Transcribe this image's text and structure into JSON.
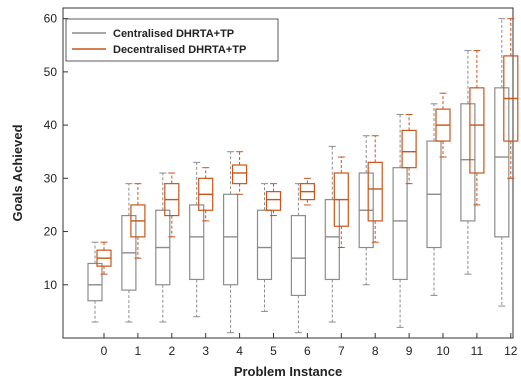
{
  "chart_data": {
    "type": "boxplot",
    "xlabel": "Problem Instance",
    "ylabel": "Goals Achieved",
    "categories": [
      "0",
      "1",
      "2",
      "3",
      "4",
      "5",
      "6",
      "7",
      "8",
      "9",
      "10",
      "11",
      "12"
    ],
    "ylim": [
      0,
      62
    ],
    "yticks": [
      10,
      20,
      30,
      40,
      50,
      60
    ],
    "grid": false,
    "legend_position": "top-left",
    "series": [
      {
        "name": "Centralised DHRTA+TP",
        "color": "#8c8c8c",
        "median_color": "#8c8c8c",
        "boxes": [
          {
            "min": 3,
            "q1": 7,
            "median": 10,
            "q3": 14,
            "max": 18
          },
          {
            "min": 3,
            "q1": 9,
            "median": 16,
            "q3": 23,
            "max": 29
          },
          {
            "min": 3,
            "q1": 10,
            "median": 17,
            "q3": 24,
            "max": 31
          },
          {
            "min": 4,
            "q1": 11,
            "median": 19,
            "q3": 25,
            "max": 33
          },
          {
            "min": 1,
            "q1": 10,
            "median": 19,
            "q3": 27,
            "max": 35
          },
          {
            "min": 5,
            "q1": 11,
            "median": 17,
            "q3": 24,
            "max": 29
          },
          {
            "min": 1,
            "q1": 8,
            "median": 15,
            "q3": 23,
            "max": 29
          },
          {
            "min": 3,
            "q1": 11,
            "median": 19,
            "q3": 26,
            "max": 36
          },
          {
            "min": 10,
            "q1": 17,
            "median": 24,
            "q3": 31,
            "max": 38
          },
          {
            "min": 2,
            "q1": 11,
            "median": 22,
            "q3": 32,
            "max": 42
          },
          {
            "min": 8,
            "q1": 17,
            "median": 27,
            "q3": 37,
            "max": 44
          },
          {
            "min": 12,
            "q1": 22,
            "median": 33.5,
            "q3": 44,
            "max": 54
          },
          {
            "min": 6,
            "q1": 19,
            "median": 34,
            "q3": 47,
            "max": 60
          }
        ]
      },
      {
        "name": "Decentralised DHRTA+TP",
        "color": "#c8551a",
        "median_color": "#c8551a",
        "boxes": [
          {
            "min": 12,
            "q1": 13.5,
            "median": 15,
            "q3": 16.5,
            "max": 18
          },
          {
            "min": 15,
            "q1": 19,
            "median": 22,
            "q3": 25,
            "max": 29
          },
          {
            "min": 19,
            "q1": 23,
            "median": 26,
            "q3": 29,
            "max": 31
          },
          {
            "min": 22,
            "q1": 24,
            "median": 27,
            "q3": 30,
            "max": 32
          },
          {
            "min": 27,
            "q1": 29,
            "median": 31,
            "q3": 32.5,
            "max": 35
          },
          {
            "min": 23,
            "q1": 24,
            "median": 26,
            "q3": 27.5,
            "max": 29
          },
          {
            "min": 25,
            "q1": 26,
            "median": 27.5,
            "q3": 29,
            "max": 30
          },
          {
            "min": 17,
            "q1": 21,
            "median": 26,
            "q3": 31,
            "max": 34
          },
          {
            "min": 18,
            "q1": 22,
            "median": 28,
            "q3": 33,
            "max": 38
          },
          {
            "min": 29,
            "q1": 32,
            "median": 35,
            "q3": 39,
            "max": 42
          },
          {
            "min": 34,
            "q1": 37,
            "median": 40,
            "q3": 43,
            "max": 46
          },
          {
            "min": 25,
            "q1": 31,
            "median": 40,
            "q3": 47,
            "max": 54
          },
          {
            "min": 30,
            "q1": 37,
            "median": 45,
            "q3": 53,
            "max": 60
          }
        ]
      }
    ]
  }
}
